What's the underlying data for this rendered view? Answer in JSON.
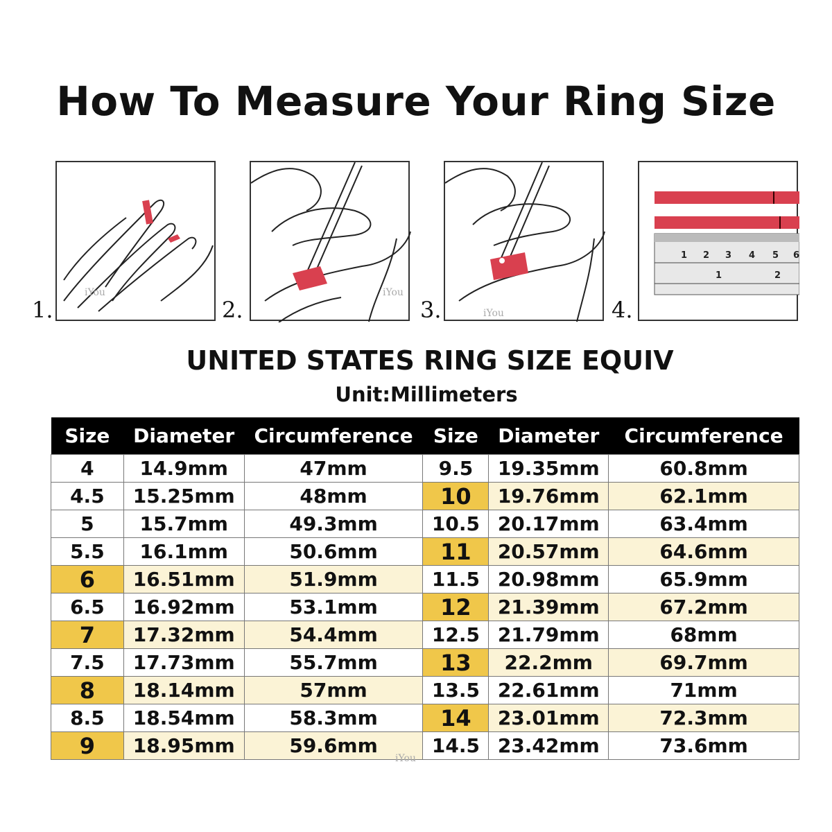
{
  "title": "How To Measure Your Ring Size",
  "steps": [
    "1.",
    "2.",
    "3.",
    "4."
  ],
  "watermark": "iYou",
  "subtitle": "UNITED STATES RING SIZE EQUIV",
  "unit": "Unit:Millimeters",
  "colors": {
    "highlight_size": "#f0c74a",
    "highlight_row": "#fbf3d6",
    "header": "#000000",
    "tape": "#d9404f"
  },
  "table": {
    "headers": [
      "Size",
      "Diameter",
      "Circumference",
      "Size",
      "Diameter",
      "Circumference"
    ],
    "rows": [
      {
        "l": [
          "4",
          "14.9mm",
          "47mm"
        ],
        "lh": false,
        "r": [
          "9.5",
          "19.35mm",
          "60.8mm"
        ],
        "rh": false
      },
      {
        "l": [
          "4.5",
          "15.25mm",
          "48mm"
        ],
        "lh": false,
        "r": [
          "10",
          "19.76mm",
          "62.1mm"
        ],
        "rh": true
      },
      {
        "l": [
          "5",
          "15.7mm",
          "49.3mm"
        ],
        "lh": false,
        "r": [
          "10.5",
          "20.17mm",
          "63.4mm"
        ],
        "rh": false
      },
      {
        "l": [
          "5.5",
          "16.1mm",
          "50.6mm"
        ],
        "lh": false,
        "r": [
          "11",
          "20.57mm",
          "64.6mm"
        ],
        "rh": true
      },
      {
        "l": [
          "6",
          "16.51mm",
          "51.9mm"
        ],
        "lh": true,
        "r": [
          "11.5",
          "20.98mm",
          "65.9mm"
        ],
        "rh": false
      },
      {
        "l": [
          "6.5",
          "16.92mm",
          "53.1mm"
        ],
        "lh": false,
        "r": [
          "12",
          "21.39mm",
          "67.2mm"
        ],
        "rh": true
      },
      {
        "l": [
          "7",
          "17.32mm",
          "54.4mm"
        ],
        "lh": true,
        "r": [
          "12.5",
          "21.79mm",
          "68mm"
        ],
        "rh": false
      },
      {
        "l": [
          "7.5",
          "17.73mm",
          "55.7mm"
        ],
        "lh": false,
        "r": [
          "13",
          "22.2mm",
          "69.7mm"
        ],
        "rh": true
      },
      {
        "l": [
          "8",
          "18.14mm",
          "57mm"
        ],
        "lh": true,
        "r": [
          "13.5",
          "22.61mm",
          "71mm"
        ],
        "rh": false
      },
      {
        "l": [
          "8.5",
          "18.54mm",
          "58.3mm"
        ],
        "lh": false,
        "r": [
          "14",
          "23.01mm",
          "72.3mm"
        ],
        "rh": true
      },
      {
        "l": [
          "9",
          "18.95mm",
          "59.6mm"
        ],
        "lh": true,
        "r": [
          "14.5",
          "23.42mm",
          "73.6mm"
        ],
        "rh": false
      }
    ]
  }
}
